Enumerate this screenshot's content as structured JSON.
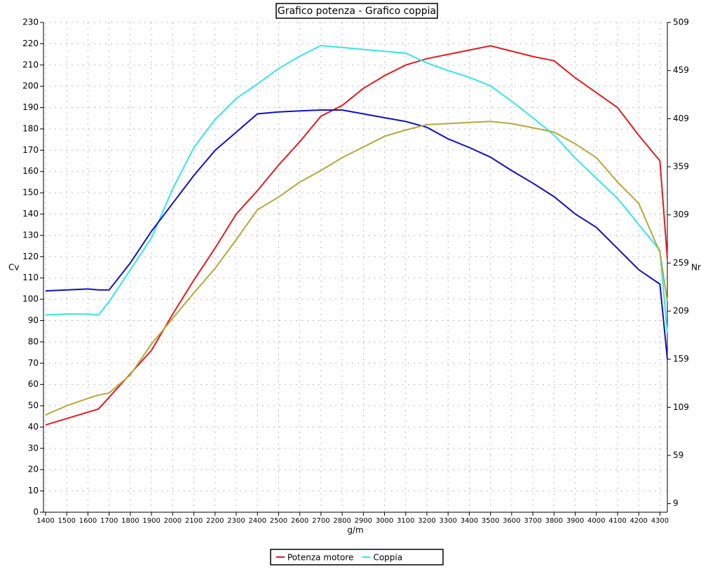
{
  "chart_data": {
    "type": "line",
    "title": "Grafico potenza - Grafico coppia",
    "x_label": "g/m",
    "y_label": "Cv",
    "y2_label": "Nm",
    "x": [
      1400,
      1500,
      1600,
      1650,
      1700,
      1800,
      1900,
      2000,
      2100,
      2200,
      2300,
      2400,
      2500,
      2600,
      2700,
      2800,
      2900,
      3000,
      3100,
      3200,
      3300,
      3400,
      3500,
      3600,
      3700,
      3800,
      3900,
      4000,
      4100,
      4200,
      4300,
      4335
    ],
    "xlim": [
      1390,
      4335
    ],
    "xticks": [
      1400,
      1500,
      1600,
      1700,
      1800,
      1900,
      2000,
      2100,
      2200,
      2300,
      2400,
      2500,
      2600,
      2700,
      2800,
      2900,
      3000,
      3100,
      3200,
      3300,
      3400,
      3500,
      3600,
      3700,
      3800,
      3900,
      4000,
      4100,
      4200,
      4300
    ],
    "ylim": [
      0,
      230
    ],
    "yticks": [
      0,
      10,
      20,
      30,
      40,
      50,
      60,
      70,
      80,
      90,
      100,
      110,
      120,
      130,
      140,
      150,
      160,
      170,
      180,
      190,
      200,
      210,
      220,
      230
    ],
    "y2lim": [
      0,
      509
    ],
    "y2ticks": [
      9,
      59,
      109,
      159,
      209,
      259,
      309,
      359,
      409,
      459,
      509
    ],
    "grid": true,
    "legend": "bottom",
    "series": [
      {
        "name": "Potenza motore",
        "color": "#e31a1c",
        "values": [
          41,
          44,
          47,
          48.5,
          54,
          65,
          76,
          93,
          109,
          124,
          140,
          151,
          163,
          174,
          186,
          191,
          199,
          205,
          210,
          213,
          215,
          217,
          219,
          216.5,
          214,
          212,
          204,
          197,
          190,
          177,
          165,
          119
        ]
      },
      {
        "name": "Coppia",
        "color": "#33e6e6",
        "axis": "y2",
        "values": [
          205,
          206,
          206,
          205,
          219,
          252,
          285,
          336,
          379,
          408,
          430,
          445,
          461,
          474,
          485,
          483,
          481,
          479,
          477,
          467,
          459,
          452,
          443,
          427,
          410,
          392,
          368,
          347,
          326,
          299,
          272,
          186
        ]
      },
      {
        "color": "#1010c8",
        "axis": "y2",
        "values": [
          230,
          231,
          232,
          231,
          231,
          259,
          292,
          321,
          350,
          376,
          395,
          414,
          416,
          417,
          418,
          418,
          414,
          410,
          406,
          400,
          388,
          379,
          369,
          355,
          342,
          328,
          310,
          296,
          274,
          252,
          237,
          159
        ]
      },
      {
        "color": "#b5a838",
        "values": [
          45.7,
          50,
          53.5,
          55,
          56,
          64.5,
          79,
          91,
          103,
          114.5,
          128,
          142,
          148,
          155,
          160.5,
          166.5,
          171.5,
          176.5,
          179.5,
          182,
          182.5,
          183,
          183.5,
          182.5,
          180.5,
          178.5,
          173,
          166.5,
          155,
          145,
          122,
          99
        ]
      }
    ]
  }
}
